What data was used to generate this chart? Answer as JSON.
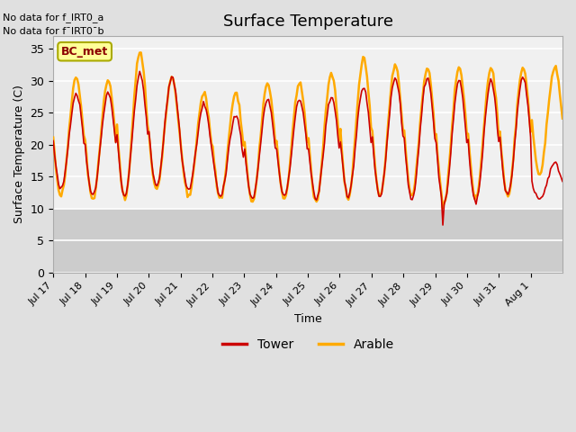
{
  "title": "Surface Temperature",
  "xlabel": "Time",
  "ylabel": "Surface Temperature (C)",
  "ylim": [
    0,
    37
  ],
  "yticks": [
    0,
    5,
    10,
    15,
    20,
    25,
    30,
    35
  ],
  "tower_color": "#cc0000",
  "arable_color": "#ffaa00",
  "tower_label": "Tower",
  "arable_label": "Arable",
  "no_data_text_1": "No data for f_IRT0_a",
  "no_data_text_2": "No data for f¯IRT0¯b",
  "bc_met_label": "BC_met",
  "bc_met_facecolor": "#ffff99",
  "bc_met_edgecolor": "#aaaa00",
  "n_days": 16,
  "tower_mins": [
    13.0,
    12.0,
    12.0,
    13.5,
    13.0,
    12.0,
    11.5,
    12.0,
    11.5,
    12.0,
    12.0,
    11.5,
    10.5,
    11.0,
    12.0,
    11.5
  ],
  "tower_maxs": [
    28.0,
    28.0,
    31.0,
    30.5,
    26.0,
    24.5,
    27.0,
    27.0,
    27.5,
    29.0,
    30.5,
    30.5,
    30.0,
    30.0,
    30.5,
    17.0
  ],
  "arable_mins": [
    12.0,
    11.5,
    11.5,
    13.0,
    12.0,
    11.5,
    11.0,
    11.5,
    11.0,
    11.5,
    12.0,
    12.0,
    11.0,
    11.5,
    12.0,
    15.5
  ],
  "arable_maxs": [
    30.5,
    30.0,
    34.5,
    30.5,
    28.0,
    28.0,
    29.5,
    29.5,
    31.0,
    33.5,
    32.5,
    32.0,
    32.0,
    32.0,
    32.0,
    32.0
  ],
  "special_min_tower": 7.5,
  "special_min_arable": 9.7,
  "xtick_labels": [
    "Jul 17",
    "Jul 18",
    "Jul 19",
    "Jul 20",
    "Jul 21",
    "Jul 22",
    "Jul 23",
    "Jul 24",
    "Jul 25",
    "Jul 26",
    "Jul 27",
    "Jul 28",
    "Jul 29",
    "Jul 30",
    "Jul 31",
    "Aug 1"
  ]
}
